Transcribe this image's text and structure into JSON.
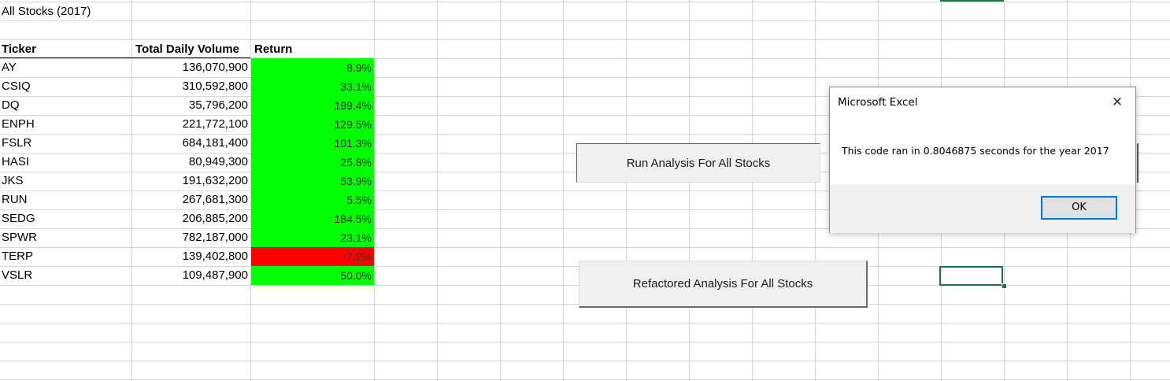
{
  "sheet": {
    "title_cell": "All Stocks (2017)",
    "headers": {
      "ticker": "Ticker",
      "volume": "Total Daily Volume",
      "return": "Return"
    },
    "rows": [
      {
        "ticker": "AY",
        "volume": "136,070,900",
        "return": "8.9%",
        "status": "positive"
      },
      {
        "ticker": "CSIQ",
        "volume": "310,592,800",
        "return": "33.1%",
        "status": "positive"
      },
      {
        "ticker": "DQ",
        "volume": "35,796,200",
        "return": "199.4%",
        "status": "positive"
      },
      {
        "ticker": "ENPH",
        "volume": "221,772,100",
        "return": "129.5%",
        "status": "positive"
      },
      {
        "ticker": "FSLR",
        "volume": "684,181,400",
        "return": "101.3%",
        "status": "positive"
      },
      {
        "ticker": "HASI",
        "volume": "80,949,300",
        "return": "25.8%",
        "status": "positive"
      },
      {
        "ticker": "JKS",
        "volume": "191,632,200",
        "return": "53.9%",
        "status": "positive"
      },
      {
        "ticker": "RUN",
        "volume": "267,681,300",
        "return": "5.5%",
        "status": "positive"
      },
      {
        "ticker": "SEDG",
        "volume": "206,885,200",
        "return": "184.5%",
        "status": "positive"
      },
      {
        "ticker": "SPWR",
        "volume": "782,187,000",
        "return": "23.1%",
        "status": "positive"
      },
      {
        "ticker": "TERP",
        "volume": "139,402,800",
        "return": "-7.2%",
        "status": "negative"
      },
      {
        "ticker": "VSLR",
        "volume": "109,487,900",
        "return": "50.0%",
        "status": "positive"
      }
    ]
  },
  "colors": {
    "positive": "#00ff00",
    "negative": "#ff0000",
    "gridline": "#d4d4d4",
    "selection": "#217346",
    "dialog_accent": "#0078d7"
  },
  "buttons": {
    "run_analysis": "Run Analysis For All Stocks",
    "refactored_analysis": "Refactored Analysis For All Stocks"
  },
  "dialog": {
    "title": "Microsoft Excel",
    "close_icon": "close-icon",
    "message": "This code ran in 0.8046875 seconds for the year 2017",
    "ok_label": "OK"
  }
}
